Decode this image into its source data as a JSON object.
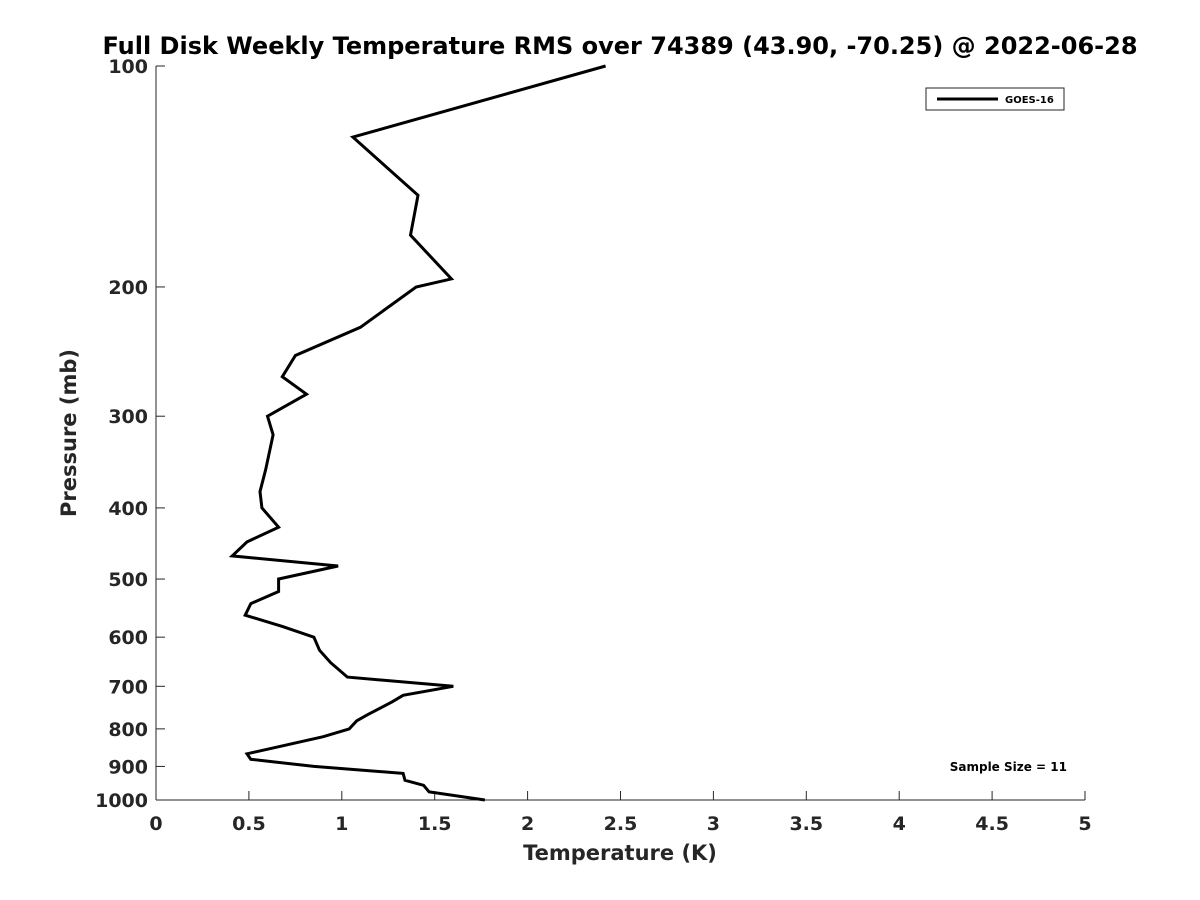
{
  "chart_data": {
    "type": "line",
    "title": "Full Disk Weekly Temperature RMS over 74389 (43.90, -70.25) @ 2022-06-28",
    "xlabel": "Temperature (K)",
    "ylabel": "Pressure (mb)",
    "xlim": [
      0,
      5
    ],
    "ylim": [
      100,
      1000
    ],
    "y_scale": "log",
    "y_reversed": true,
    "x_ticks": [
      "0",
      "0.5",
      "1",
      "1.5",
      "2",
      "2.5",
      "3",
      "3.5",
      "4",
      "4.5",
      "5"
    ],
    "y_ticks": [
      "100",
      "200",
      "300",
      "400",
      "500",
      "600",
      "700",
      "800",
      "900",
      "1000"
    ],
    "grid": false,
    "legend_position": "top-right",
    "annotation": "Sample Size = 11",
    "series": [
      {
        "name": "GOES-16",
        "color": "#000000",
        "points": [
          [
            2.42,
            100
          ],
          [
            1.06,
            125
          ],
          [
            1.41,
            150
          ],
          [
            1.37,
            170
          ],
          [
            1.59,
            195
          ],
          [
            1.4,
            200
          ],
          [
            1.1,
            227
          ],
          [
            0.75,
            248
          ],
          [
            0.68,
            265
          ],
          [
            0.81,
            280
          ],
          [
            0.6,
            300
          ],
          [
            0.63,
            318
          ],
          [
            0.59,
            355
          ],
          [
            0.56,
            380
          ],
          [
            0.57,
            400
          ],
          [
            0.66,
            425
          ],
          [
            0.49,
            445
          ],
          [
            0.41,
            465
          ],
          [
            0.98,
            480
          ],
          [
            0.66,
            500
          ],
          [
            0.66,
            520
          ],
          [
            0.51,
            540
          ],
          [
            0.48,
            560
          ],
          [
            0.68,
            580
          ],
          [
            0.85,
            600
          ],
          [
            0.88,
            625
          ],
          [
            0.94,
            650
          ],
          [
            1.03,
            680
          ],
          [
            1.6,
            700
          ],
          [
            1.33,
            720
          ],
          [
            1.27,
            735
          ],
          [
            1.14,
            765
          ],
          [
            1.08,
            780
          ],
          [
            1.04,
            800
          ],
          [
            0.9,
            820
          ],
          [
            0.67,
            845
          ],
          [
            0.49,
            865
          ],
          [
            0.51,
            880
          ],
          [
            0.85,
            900
          ],
          [
            1.33,
            920
          ],
          [
            1.34,
            940
          ],
          [
            1.44,
            955
          ],
          [
            1.47,
            975
          ],
          [
            1.77,
            1000
          ]
        ]
      }
    ]
  }
}
